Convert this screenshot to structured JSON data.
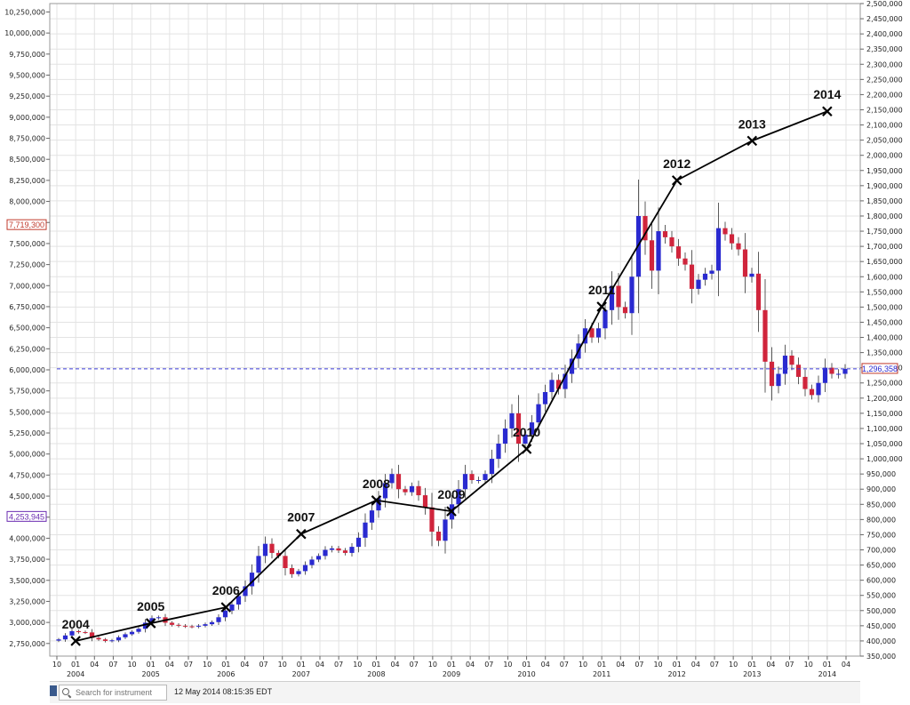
{
  "chart_data": {
    "type": "candlestick",
    "left_axis": {
      "ticks": [
        "2,750,000",
        "3,000,000",
        "3,250,000",
        "3,500,000",
        "3,750,000",
        "4,000,000",
        "4,250,000",
        "4,500,000",
        "4,750,000",
        "5,000,000",
        "5,250,000",
        "5,500,000",
        "5,750,000",
        "6,000,000",
        "6,250,000",
        "6,500,000",
        "6,750,000",
        "7,000,000",
        "7,250,000",
        "7,500,000",
        "7,750,000",
        "8,000,000",
        "8,250,000",
        "8,500,000",
        "8,750,000",
        "9,000,000",
        "9,250,000",
        "9,500,000",
        "9,750,000",
        "10,000,000",
        "10,250,000"
      ],
      "ylim": [
        2600000,
        10350000
      ],
      "markers": [
        {
          "label": "7,719,300",
          "value": 7719300,
          "color": "#c0392b"
        },
        {
          "label": "4,253,945",
          "value": 4253945,
          "color": "#6a2bb0"
        }
      ]
    },
    "right_axis": {
      "ylim": [
        350000,
        2500000
      ],
      "ticks": [
        "350,000",
        "400,000",
        "450,000",
        "500,000",
        "550,000",
        "600,000",
        "650,000",
        "700,000",
        "750,000",
        "800,000",
        "850,000",
        "900,000",
        "950,000",
        "1,000,000",
        "1,050,000",
        "1,100,000",
        "1,150,000",
        "1,200,000",
        "1,250,000",
        "1,300,000",
        "1,350,000",
        "1,400,000",
        "1,450,000",
        "1,500,000",
        "1,550,000",
        "1,600,000",
        "1,650,000",
        "1,700,000",
        "1,750,000",
        "1,800,000",
        "1,850,000",
        "1,900,000",
        "1,950,000",
        "2,000,000",
        "2,050,000",
        "2,100,000",
        "2,150,000",
        "2,200,000",
        "2,250,000",
        "2,300,000",
        "2,350,000",
        "2,400,000",
        "2,450,000",
        "2,500,000"
      ],
      "last_price": {
        "label": "1,296,358",
        "value": 1296358
      }
    },
    "x_axis": {
      "month_labels": [
        "10",
        "01",
        "04",
        "07",
        "10",
        "01",
        "04",
        "07",
        "10",
        "01",
        "04",
        "07",
        "10",
        "01",
        "04",
        "07",
        "10",
        "01",
        "04",
        "07",
        "10",
        "01",
        "04",
        "07",
        "10",
        "01",
        "04",
        "07",
        "10",
        "01",
        "04",
        "07",
        "10",
        "01",
        "04",
        "07",
        "10",
        "01",
        "04",
        "07",
        "10",
        "01",
        "04"
      ],
      "year_labels": [
        "2004",
        "2005",
        "2006",
        "2007",
        "2008",
        "2009",
        "2010",
        "2011",
        "2012",
        "2013",
        "2014"
      ]
    },
    "candles_close": [
      405000,
      418000,
      432000,
      429000,
      428000,
      410000,
      405000,
      400000,
      402000,
      412000,
      422000,
      430000,
      440000,
      460000,
      475000,
      478000,
      460000,
      453000,
      450000,
      448000,
      447000,
      450000,
      455000,
      462000,
      478000,
      500000,
      520000,
      548000,
      580000,
      625000,
      680000,
      720000,
      690000,
      680000,
      640000,
      620000,
      630000,
      650000,
      668000,
      680000,
      700000,
      705000,
      698000,
      690000,
      710000,
      740000,
      790000,
      830000,
      870000,
      920000,
      950000,
      900000,
      890000,
      910000,
      880000,
      840000,
      760000,
      730000,
      800000,
      850000,
      900000,
      950000,
      930000,
      930000,
      950000,
      1000000,
      1050000,
      1100000,
      1150000,
      1050000,
      1080000,
      1120000,
      1180000,
      1220000,
      1260000,
      1230000,
      1280000,
      1330000,
      1380000,
      1430000,
      1400000,
      1430000,
      1490000,
      1570000,
      1500000,
      1480000,
      1600000,
      1800000,
      1720000,
      1620000,
      1750000,
      1730000,
      1700000,
      1660000,
      1640000,
      1560000,
      1590000,
      1610000,
      1620000,
      1760000,
      1740000,
      1710000,
      1690000,
      1600000,
      1610000,
      1490000,
      1320000,
      1240000,
      1280000,
      1340000,
      1310000,
      1270000,
      1230000,
      1210000,
      1250000,
      1300000,
      1280000,
      1280000,
      1296358
    ],
    "line_series": {
      "name": "",
      "points": [
        {
          "label": "2004",
          "value": 2780000
        },
        {
          "label": "2005",
          "value": 2990000
        },
        {
          "label": "2006",
          "value": 3180000
        },
        {
          "label": "2007",
          "value": 4050000
        },
        {
          "label": "2008",
          "value": 4450000
        },
        {
          "label": "2009",
          "value": 4320000
        },
        {
          "label": "2010",
          "value": 5060000
        },
        {
          "label": "2011",
          "value": 6750000
        },
        {
          "label": "2012",
          "value": 8250000
        },
        {
          "label": "2013",
          "value": 8720000
        },
        {
          "label": "2014",
          "value": 9070000
        }
      ]
    },
    "colors": {
      "up": "#2a2ad0",
      "down": "#d0253c",
      "line": "#000000",
      "hline": "#3b3bd6",
      "grid": "#e3e3e3"
    },
    "grid": true
  },
  "footer": {
    "search_placeholder": "Search for instrument",
    "timestamp": "12 May 2014 08:15:35 EDT"
  }
}
